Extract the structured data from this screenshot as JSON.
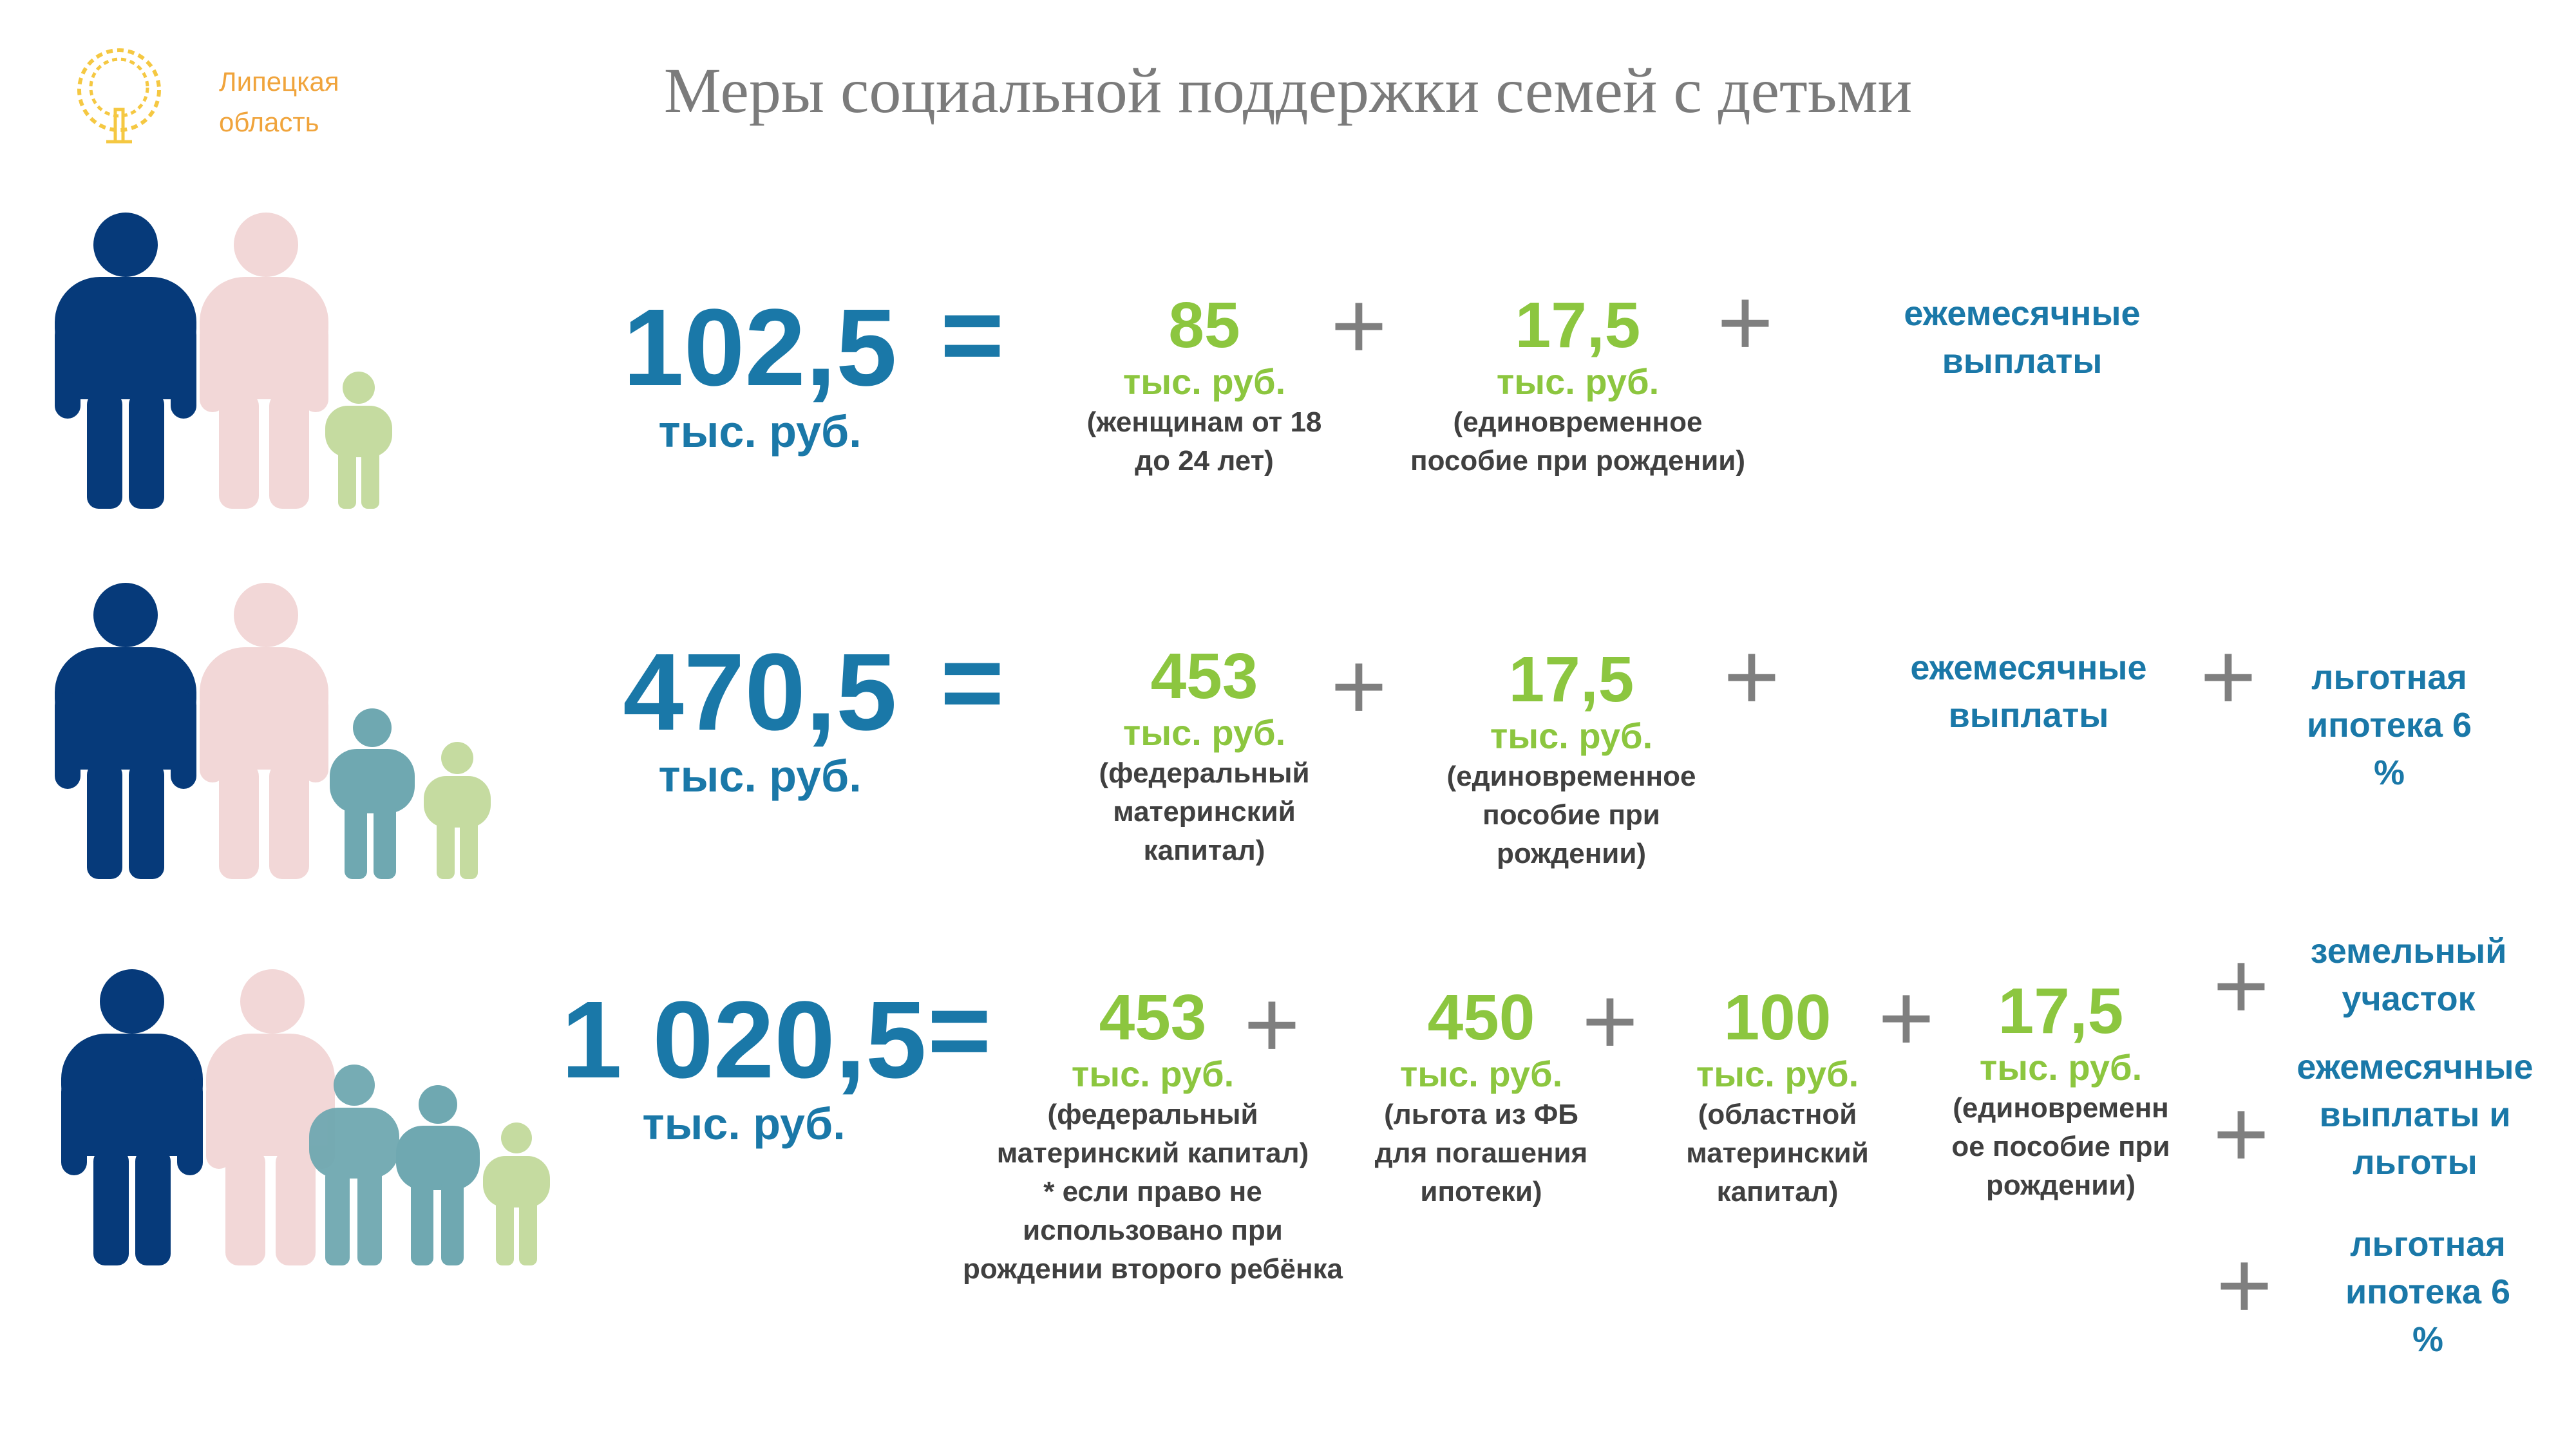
{
  "logo": {
    "icon": "tree-emblem-icon",
    "region": "Липецкая область",
    "color": "#f0a43c"
  },
  "title": "Меры социальной поддержки семей с детьми",
  "colors": {
    "father": "#063a7a",
    "mother": "#f2d7d7",
    "child_teal": "#6fa8b1",
    "child_green": "#c5dba0",
    "accent_blue": "#1a78a8",
    "accent_green": "#8cc63f"
  },
  "rows": [
    {
      "family_icon": "family-one-child-icon",
      "total": "102,5",
      "total_unit": "тыс. руб.",
      "equals": "=",
      "items": [
        {
          "value": "85",
          "unit": "тыс. руб.",
          "desc": "(женщинам от 18 до 24 лет)"
        },
        {
          "value": "17,5",
          "unit": "тыс. руб.",
          "desc": "(единовременное пособие при рождении)"
        }
      ],
      "extras": [
        "ежемесячные выплаты"
      ]
    },
    {
      "family_icon": "family-two-children-icon",
      "total": "470,5",
      "total_unit": "тыс. руб.",
      "equals": "=",
      "items": [
        {
          "value": "453",
          "unit": "тыс. руб.",
          "desc": "(федеральный материнский капитал)"
        },
        {
          "value": "17,5",
          "unit": "тыс. руб.",
          "desc": "(единовременное пособие при рождении)"
        }
      ],
      "extras": [
        "ежемесячные выплаты",
        "льготная ипотека 6 %"
      ]
    },
    {
      "family_icon": "family-three-children-icon",
      "total": "1 020,5",
      "total_unit": "тыс. руб.",
      "equals": "=",
      "items": [
        {
          "value": "453",
          "unit": "тыс. руб.",
          "desc": "(федеральный материнский капитал)",
          "note": "* если право не использовано при рождении второго ребёнка"
        },
        {
          "value": "450",
          "unit": "тыс. руб.",
          "desc": "(льгота из ФБ для погашения ипотеки)"
        },
        {
          "value": "100",
          "unit": "тыс. руб.",
          "desc": "(областной материнский капитал)"
        },
        {
          "value": "17,5",
          "unit": "тыс. руб.",
          "desc": "(единовременн ое пособие при рождении)"
        }
      ],
      "extras": [
        "земельный участок",
        "ежемесячные выплаты и льготы",
        "льготная ипотека 6 %"
      ]
    }
  ]
}
